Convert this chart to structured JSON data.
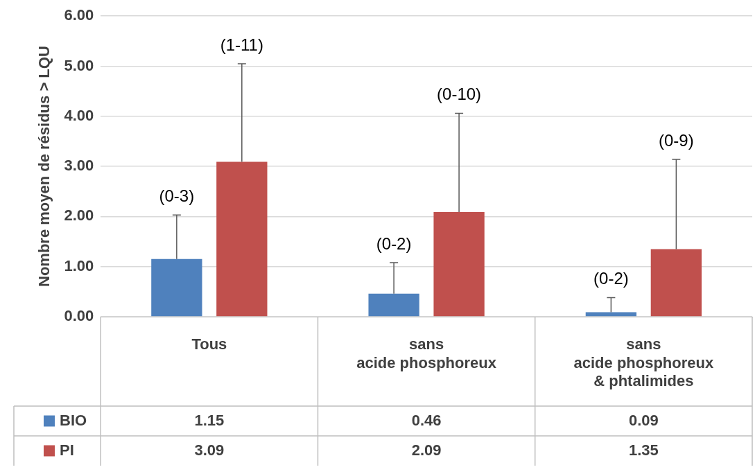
{
  "chart_data": {
    "type": "bar",
    "ylabel": "Nombre moyen de résidus > LQU",
    "categories": [
      "Tous",
      "sans\nacide phosphoreux",
      "sans\nacide phosphoreux\n& phtalimides"
    ],
    "series": [
      {
        "name": "BIO",
        "color": "#4f81bd",
        "values": [
          1.15,
          0.46,
          0.09
        ],
        "errors": [
          [
            1.15,
            2.03
          ],
          [
            0.46,
            1.08
          ],
          [
            0.09,
            0.38
          ]
        ]
      },
      {
        "name": "PI",
        "color": "#c0504d",
        "values": [
          3.09,
          2.09,
          1.35
        ],
        "errors": [
          [
            3.09,
            5.05
          ],
          [
            2.09,
            4.06
          ],
          [
            1.35,
            3.14
          ]
        ]
      }
    ],
    "ylim": [
      0,
      6
    ],
    "yticks": [
      {
        "value": 0,
        "label": "0.00"
      },
      {
        "value": 1,
        "label": "1.00"
      },
      {
        "value": 2,
        "label": "2.00"
      },
      {
        "value": 3,
        "label": "3.00"
      },
      {
        "value": 4,
        "label": "4.00"
      },
      {
        "value": 5,
        "label": "5.00"
      },
      {
        "value": 6,
        "label": "6.00"
      }
    ],
    "annotations": [
      "(0-3)",
      "(1-11)",
      "(0-2)",
      "(0-10)",
      "(0-2)",
      "(0-9)"
    ],
    "grid": "y",
    "legend": "bottom",
    "data_labels": true
  }
}
